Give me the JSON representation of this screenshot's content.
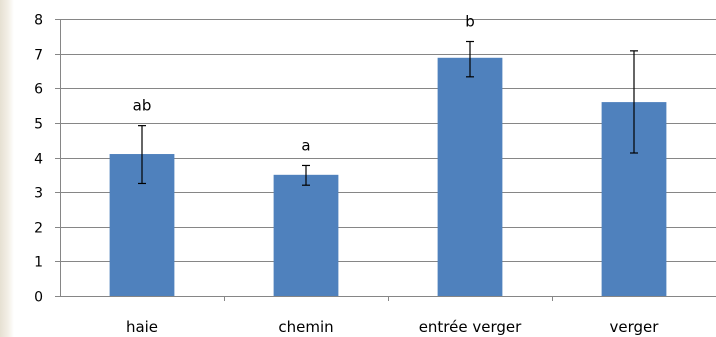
{
  "chart_data": {
    "type": "bar",
    "categories": [
      "haie",
      "chemin",
      "entrée verger",
      "verger"
    ],
    "values": [
      4.1,
      3.5,
      6.88,
      5.6
    ],
    "error_low": [
      3.25,
      3.2,
      6.33,
      4.13
    ],
    "error_high": [
      4.92,
      3.77,
      7.35,
      7.08
    ],
    "significance_labels": [
      "ab",
      "a",
      "b",
      ""
    ],
    "yticks": [
      "0",
      "1",
      "2",
      "3",
      "4",
      "5",
      "6",
      "7",
      "8"
    ],
    "ylim": [
      0,
      8
    ],
    "grid": true,
    "legend": "none",
    "colors": {
      "bar": "#4f81bd",
      "grid": "#868686"
    }
  }
}
